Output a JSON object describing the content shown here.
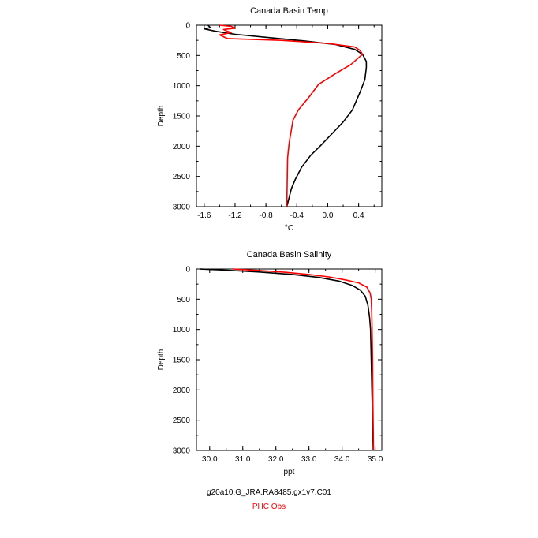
{
  "chart_data": [
    {
      "type": "line",
      "title": "Canada Basin Temp",
      "xlabel": "°C",
      "ylabel": "Depth",
      "xlim": [
        -1.7,
        0.7
      ],
      "ylim": [
        3000,
        0
      ],
      "xticks": [
        "-1.6",
        "-1.2",
        "-0.8",
        "-0.4",
        "0.0",
        "0.4"
      ],
      "xtick_values": [
        -1.6,
        -1.2,
        -0.8,
        -0.4,
        0.0,
        0.4
      ],
      "yticks": [
        "0",
        "500",
        "1000",
        "1500",
        "2000",
        "2500",
        "3000"
      ],
      "ytick_values": [
        0,
        500,
        1000,
        1500,
        2000,
        2500,
        3000
      ],
      "series": [
        {
          "name": "g20a10.G_JRA.RA8485.gx1v7.C01",
          "color": "#000000",
          "points": [
            [
              -1.55,
              0
            ],
            [
              -1.52,
              40
            ],
            [
              -1.6,
              60
            ],
            [
              -1.45,
              100
            ],
            [
              -1.2,
              150
            ],
            [
              -0.8,
              200
            ],
            [
              -0.3,
              260
            ],
            [
              0.1,
              320
            ],
            [
              0.35,
              400
            ],
            [
              0.45,
              480
            ],
            [
              0.5,
              600
            ],
            [
              0.5,
              700
            ],
            [
              0.48,
              900
            ],
            [
              0.42,
              1100
            ],
            [
              0.32,
              1400
            ],
            [
              0.2,
              1600
            ],
            [
              0.05,
              1800
            ],
            [
              -0.1,
              2000
            ],
            [
              -0.22,
              2150
            ],
            [
              -0.34,
              2350
            ],
            [
              -0.42,
              2550
            ],
            [
              -0.47,
              2700
            ],
            [
              -0.5,
              2850
            ],
            [
              -0.53,
              3000
            ]
          ]
        },
        {
          "name": "PHC Obs",
          "color": "#ff0000",
          "points": [
            [
              -1.4,
              0
            ],
            [
              -1.25,
              20
            ],
            [
              -1.2,
              50
            ],
            [
              -1.35,
              70
            ],
            [
              -1.3,
              100
            ],
            [
              -1.25,
              120
            ],
            [
              -1.4,
              160
            ],
            [
              -1.3,
              220
            ],
            [
              -0.6,
              250
            ],
            [
              0.0,
              300
            ],
            [
              0.35,
              360
            ],
            [
              0.42,
              420
            ],
            [
              0.45,
              480
            ],
            [
              0.3,
              650
            ],
            [
              0.1,
              800
            ],
            [
              -0.12,
              980
            ],
            [
              -0.25,
              1200
            ],
            [
              -0.38,
              1400
            ],
            [
              -0.45,
              1570
            ],
            [
              -0.5,
              1950
            ],
            [
              -0.52,
              2200
            ],
            [
              -0.53,
              3000
            ]
          ]
        }
      ]
    },
    {
      "type": "line",
      "title": "Canada Basin Salinity",
      "xlabel": "ppt",
      "ylabel": "Depth",
      "xlim": [
        29.6,
        35.2
      ],
      "ylim": [
        3000,
        0
      ],
      "xticks": [
        "30.0",
        "31.0",
        "32.0",
        "33.0",
        "34.0",
        "35.0"
      ],
      "xtick_values": [
        30.0,
        31.0,
        32.0,
        33.0,
        34.0,
        35.0
      ],
      "yticks": [
        "0",
        "500",
        "1000",
        "1500",
        "2000",
        "2500",
        "3000"
      ],
      "ytick_values": [
        0,
        500,
        1000,
        1500,
        2000,
        2500,
        3000
      ],
      "series": [
        {
          "name": "g20a10.G_JRA.RA8485.gx1v7.C01",
          "color": "#000000",
          "points": [
            [
              29.7,
              0
            ],
            [
              30.5,
              20
            ],
            [
              31.5,
              50
            ],
            [
              32.5,
              90
            ],
            [
              33.3,
              140
            ],
            [
              33.9,
              200
            ],
            [
              34.3,
              270
            ],
            [
              34.55,
              350
            ],
            [
              34.7,
              450
            ],
            [
              34.78,
              600
            ],
            [
              34.83,
              800
            ],
            [
              34.86,
              1000
            ],
            [
              34.88,
              1500
            ],
            [
              34.9,
              2000
            ],
            [
              34.92,
              2500
            ],
            [
              34.94,
              3000
            ]
          ]
        },
        {
          "name": "PHC Obs",
          "color": "#ff0000",
          "points": [
            [
              30.7,
              0
            ],
            [
              31.5,
              25
            ],
            [
              32.3,
              55
            ],
            [
              33.0,
              90
            ],
            [
              33.6,
              130
            ],
            [
              34.1,
              180
            ],
            [
              34.5,
              230
            ],
            [
              34.75,
              300
            ],
            [
              34.85,
              400
            ],
            [
              34.88,
              500
            ],
            [
              34.9,
              800
            ],
            [
              34.92,
              1500
            ],
            [
              34.93,
              2200
            ],
            [
              34.95,
              3000
            ]
          ]
        }
      ]
    }
  ],
  "legend": {
    "model_label": "g20a10.G_JRA.RA8485.gx1v7.C01",
    "obs_label": "PHC Obs"
  }
}
